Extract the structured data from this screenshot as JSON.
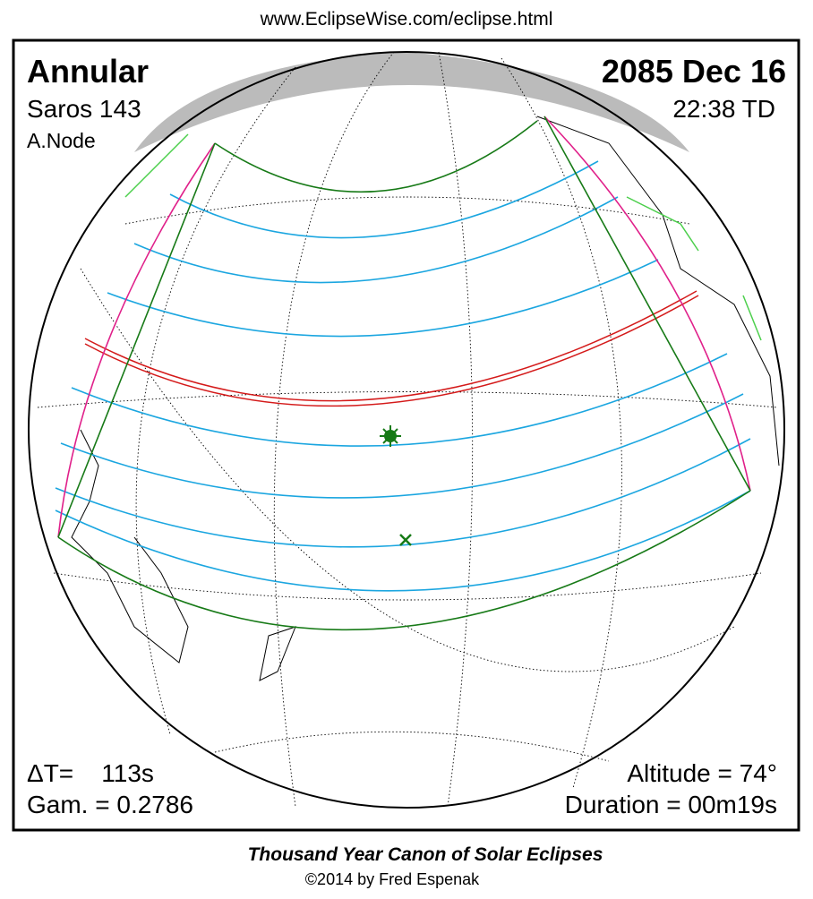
{
  "url": "www.EclipseWise.com/eclipse.html",
  "eclipse": {
    "type": "Annular",
    "saros": "Saros 143",
    "node": "A.Node",
    "date": "2085 Dec 16",
    "time": "22:38 TD",
    "delta_t": "ΔT=    113s",
    "gamma": "Gam. = 0.2786",
    "altitude": "Altitude = 74°",
    "duration": "Duration = 00m19s"
  },
  "footer": {
    "title": "Thousand Year Canon of Solar Eclipses",
    "copyright": "©2014 by Fred Espenak"
  }
}
